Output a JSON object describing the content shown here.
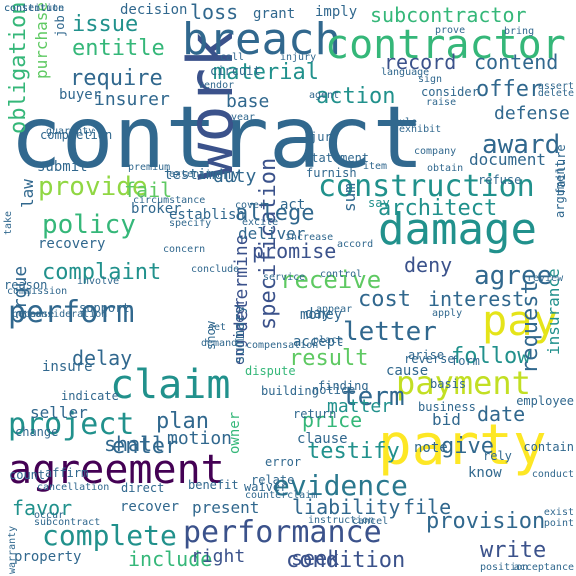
{
  "palette": {
    "dark_purple": "#440154",
    "indigo": "#3b528b",
    "blue": "#31688e",
    "teal": "#21918c",
    "green": "#35b779",
    "lime": "#90d743",
    "yellow": "#e5e419"
  },
  "words": [
    {
      "text": "contract",
      "color": "#31688e"
    },
    {
      "text": "work",
      "color": "#3b528b"
    },
    {
      "text": "party",
      "color": "#fde725"
    },
    {
      "text": "breach",
      "color": "#31688e"
    },
    {
      "text": "contractor",
      "color": "#35b779"
    },
    {
      "text": "damage",
      "color": "#21918c"
    },
    {
      "text": "agreement",
      "color": "#440154"
    },
    {
      "text": "performance",
      "color": "#3b528b"
    },
    {
      "text": "claim",
      "color": "#21918c"
    },
    {
      "text": "pay",
      "color": "#e5e419"
    },
    {
      "text": "payment",
      "color": "#c2df23"
    },
    {
      "text": "construction",
      "color": "#21918c"
    },
    {
      "text": "evidence",
      "color": "#2a788e"
    },
    {
      "text": "project",
      "color": "#21918c"
    },
    {
      "text": "perform",
      "color": "#31688e"
    },
    {
      "text": "term",
      "color": "#31688e"
    },
    {
      "text": "complete",
      "color": "#21918c"
    },
    {
      "text": "provision",
      "color": "#31688e"
    },
    {
      "text": "condition",
      "color": "#3b528b"
    },
    {
      "text": "specification",
      "color": "#3b528b"
    },
    {
      "text": "policy",
      "color": "#35b779"
    },
    {
      "text": "provide",
      "color": "#90d743"
    },
    {
      "text": "letter",
      "color": "#31688e"
    },
    {
      "text": "agree",
      "color": "#31688e"
    },
    {
      "text": "receive",
      "color": "#5ec962"
    },
    {
      "text": "architect",
      "color": "#21918c"
    },
    {
      "text": "award",
      "color": "#31688e"
    },
    {
      "text": "offer",
      "color": "#31688e"
    },
    {
      "text": "material",
      "color": "#21918c"
    },
    {
      "text": "require",
      "color": "#31688e"
    },
    {
      "text": "issue",
      "color": "#21918c"
    },
    {
      "text": "entitle",
      "color": "#35b779"
    },
    {
      "text": "action",
      "color": "#21918c"
    },
    {
      "text": "record",
      "color": "#3b528b"
    },
    {
      "text": "contend",
      "color": "#31688e"
    },
    {
      "text": "subcontractor",
      "color": "#35b779"
    },
    {
      "text": "loss",
      "color": "#31688e"
    },
    {
      "text": "allege",
      "color": "#31688e"
    },
    {
      "text": "promise",
      "color": "#3b528b"
    },
    {
      "text": "complaint",
      "color": "#21918c"
    },
    {
      "text": "cost",
      "color": "#31688e"
    },
    {
      "text": "deny",
      "color": "#3b528b"
    },
    {
      "text": "result",
      "color": "#5ec962"
    },
    {
      "text": "follow",
      "color": "#21918c"
    },
    {
      "text": "interest",
      "color": "#31688e"
    },
    {
      "text": "delay",
      "color": "#31688e"
    },
    {
      "text": "plan",
      "color": "#31688e"
    },
    {
      "text": "price",
      "color": "#35b779"
    },
    {
      "text": "testify",
      "color": "#21918c"
    },
    {
      "text": "enter",
      "color": "#31688e"
    },
    {
      "text": "give",
      "color": "#31688e"
    },
    {
      "text": "request",
      "color": "#31688e"
    },
    {
      "text": "date",
      "color": "#31688e"
    },
    {
      "text": "matter",
      "color": "#21918c"
    },
    {
      "text": "write",
      "color": "#3b528b"
    },
    {
      "text": "seek",
      "color": "#3b528b"
    },
    {
      "text": "include",
      "color": "#35b779"
    },
    {
      "text": "right",
      "color": "#3b528b"
    },
    {
      "text": "favor",
      "color": "#21918c"
    },
    {
      "text": "liability",
      "color": "#31688e"
    },
    {
      "text": "file",
      "color": "#31688e"
    },
    {
      "text": "shall",
      "color": "#31688e"
    },
    {
      "text": "motion",
      "color": "#31688e"
    },
    {
      "text": "obligation",
      "color": "#35b779"
    },
    {
      "text": "defense",
      "color": "#31688e"
    },
    {
      "text": "insurer",
      "color": "#31688e"
    },
    {
      "text": "base",
      "color": "#31688e"
    },
    {
      "text": "duty",
      "color": "#31688e"
    },
    {
      "text": "fail",
      "color": "#5ec962"
    },
    {
      "text": "document",
      "color": "#31688e"
    },
    {
      "text": "determine",
      "color": "#3b528b"
    },
    {
      "text": "argue",
      "color": "#31688e"
    },
    {
      "text": "law",
      "color": "#31688e"
    },
    {
      "text": "deliver",
      "color": "#31688e"
    },
    {
      "text": "money",
      "color": "#31688e"
    },
    {
      "text": "day",
      "color": "#31688e"
    },
    {
      "text": "accept",
      "color": "#31688e"
    },
    {
      "text": "seller",
      "color": "#31688e"
    },
    {
      "text": "insure",
      "color": "#31688e"
    },
    {
      "text": "recovery",
      "color": "#31688e"
    },
    {
      "text": "engineer",
      "color": "#3b528b"
    },
    {
      "text": "insurance",
      "color": "#21918c"
    },
    {
      "text": "decision",
      "color": "#31688e"
    },
    {
      "text": "grant",
      "color": "#31688e"
    },
    {
      "text": "imply",
      "color": "#31688e"
    },
    {
      "text": "job",
      "color": "#31688e"
    },
    {
      "text": "purchase",
      "color": "#5ec962"
    },
    {
      "text": "buyer",
      "color": "#31688e"
    },
    {
      "text": "submit",
      "color": "#31688e"
    },
    {
      "text": "say",
      "color": "#21918c"
    },
    {
      "text": "act",
      "color": "#31688e"
    },
    {
      "text": "recover",
      "color": "#31688e"
    },
    {
      "text": "note",
      "color": "#31688e"
    },
    {
      "text": "know",
      "color": "#31688e"
    },
    {
      "text": "present",
      "color": "#31688e"
    },
    {
      "text": "owner",
      "color": "#35b779"
    },
    {
      "text": "indicate",
      "color": "#31688e"
    },
    {
      "text": "support",
      "color": "#31688e"
    },
    {
      "text": "reason",
      "color": "#31688e"
    },
    {
      "text": "change",
      "color": "#31688e"
    },
    {
      "text": "count",
      "color": "#31688e"
    },
    {
      "text": "affirm",
      "color": "#31688e"
    },
    {
      "text": "property",
      "color": "#31688e"
    },
    {
      "text": "circuit",
      "color": "#31688e"
    },
    {
      "text": "consider",
      "color": "#31688e"
    },
    {
      "text": "sum",
      "color": "#31688e"
    },
    {
      "text": "failure",
      "color": "#31688e"
    },
    {
      "text": "argument",
      "color": "#31688e"
    },
    {
      "text": "refuse",
      "color": "#31688e"
    },
    {
      "text": "statement",
      "color": "#31688e"
    },
    {
      "text": "furnish",
      "color": "#31688e"
    },
    {
      "text": "jury",
      "color": "#31688e"
    },
    {
      "text": "testimony",
      "color": "#31688e"
    },
    {
      "text": "establish",
      "color": "#31688e"
    },
    {
      "text": "broker",
      "color": "#31688e"
    },
    {
      "text": "completion",
      "color": "#31688e"
    },
    {
      "text": "show",
      "color": "#31688e"
    },
    {
      "text": "summary",
      "color": "#31688e"
    },
    {
      "text": "building",
      "color": "#31688e"
    },
    {
      "text": "clause",
      "color": "#31688e"
    },
    {
      "text": "bid",
      "color": "#31688e"
    },
    {
      "text": "dispute",
      "color": "#35b779"
    },
    {
      "text": "cause",
      "color": "#31688e"
    },
    {
      "text": "arise",
      "color": "#31688e"
    },
    {
      "text": "reverse",
      "color": "#31688e"
    },
    {
      "text": "form",
      "color": "#31688e"
    },
    {
      "text": "basis",
      "color": "#31688e"
    },
    {
      "text": "contain",
      "color": "#31688e"
    },
    {
      "text": "rely",
      "color": "#31688e"
    },
    {
      "text": "return",
      "color": "#31688e"
    },
    {
      "text": "notice",
      "color": "#31688e"
    },
    {
      "text": "finding",
      "color": "#31688e"
    },
    {
      "text": "employee",
      "color": "#31688e"
    },
    {
      "text": "business",
      "color": "#31688e"
    },
    {
      "text": "direct",
      "color": "#31688e"
    },
    {
      "text": "benefit",
      "color": "#31688e"
    },
    {
      "text": "cancellation",
      "color": "#31688e"
    },
    {
      "text": "waiver",
      "color": "#31688e"
    },
    {
      "text": "relate",
      "color": "#31688e"
    },
    {
      "text": "error",
      "color": "#31688e"
    },
    {
      "text": "conduct",
      "color": "#31688e"
    },
    {
      "text": "exist",
      "color": "#31688e"
    },
    {
      "text": "point",
      "color": "#31688e"
    },
    {
      "text": "position",
      "color": "#31688e"
    },
    {
      "text": "acceptance",
      "color": "#31688e"
    },
    {
      "text": "warranty",
      "color": "#31688e"
    },
    {
      "text": "subcontract",
      "color": "#31688e"
    },
    {
      "text": "occur",
      "color": "#31688e"
    },
    {
      "text": "instruction",
      "color": "#31688e"
    },
    {
      "text": "cancel",
      "color": "#31688e"
    },
    {
      "text": "counterclaim",
      "color": "#31688e"
    },
    {
      "text": "take",
      "color": "#31688e"
    },
    {
      "text": "commission",
      "color": "#31688e"
    },
    {
      "text": "circumstance",
      "color": "#31688e"
    },
    {
      "text": "premium",
      "color": "#31688e"
    },
    {
      "text": "guaranty",
      "color": "#31688e"
    },
    {
      "text": "vendor",
      "color": "#31688e"
    },
    {
      "text": "call",
      "color": "#31688e"
    },
    {
      "text": "injury",
      "color": "#31688e"
    },
    {
      "text": "language",
      "color": "#31688e"
    },
    {
      "text": "sign",
      "color": "#31688e"
    },
    {
      "text": "raise",
      "color": "#31688e"
    },
    {
      "text": "agent",
      "color": "#31688e"
    },
    {
      "text": "year",
      "color": "#31688e"
    },
    {
      "text": "rule",
      "color": "#31688e"
    },
    {
      "text": "exhibit",
      "color": "#31688e"
    },
    {
      "text": "company",
      "color": "#31688e"
    },
    {
      "text": "obtain",
      "color": "#31688e"
    },
    {
      "text": "item",
      "color": "#31688e"
    },
    {
      "text": "extension",
      "color": "#31688e"
    },
    {
      "text": "cover",
      "color": "#31688e"
    },
    {
      "text": "excite",
      "color": "#31688e"
    },
    {
      "text": "specify",
      "color": "#31688e"
    },
    {
      "text": "increase",
      "color": "#31688e"
    },
    {
      "text": "accord",
      "color": "#31688e"
    },
    {
      "text": "concern",
      "color": "#31688e"
    },
    {
      "text": "service",
      "color": "#31688e"
    },
    {
      "text": "control",
      "color": "#31688e"
    },
    {
      "text": "review",
      "color": "#31688e"
    },
    {
      "text": "conclude",
      "color": "#31688e"
    },
    {
      "text": "involve",
      "color": "#31688e"
    },
    {
      "text": "because",
      "color": "#31688e"
    },
    {
      "text": "appear",
      "color": "#31688e"
    },
    {
      "text": "consideration",
      "color": "#31688e"
    },
    {
      "text": "apply",
      "color": "#31688e"
    },
    {
      "text": "place",
      "color": "#31688e"
    },
    {
      "text": "set",
      "color": "#31688e"
    },
    {
      "text": "demand",
      "color": "#31688e"
    },
    {
      "text": "compensation",
      "color": "#31688e"
    },
    {
      "text": "assert",
      "color": "#31688e"
    },
    {
      "text": "delete",
      "color": "#31688e"
    },
    {
      "text": "bring",
      "color": "#31688e"
    },
    {
      "text": "prove",
      "color": "#31688e"
    },
    {
      "text": "constitute",
      "color": "#31688e"
    },
    {
      "text": "contention",
      "color": "#31688e"
    }
  ]
}
